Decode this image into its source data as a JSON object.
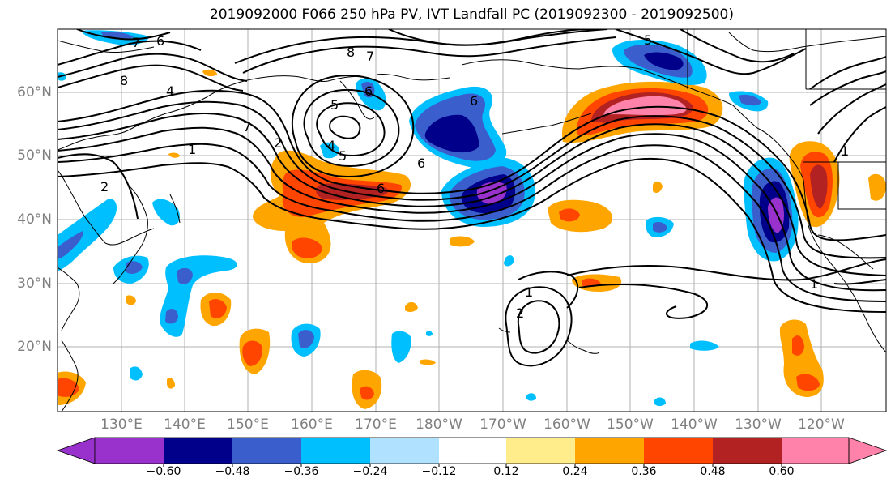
{
  "title": "2019092000 F066 250 hPa PV, IVT Landfall PC (2019092300 - 2019092500)",
  "lat_labels": [
    "60°N",
    "50°N",
    "40°N",
    "30°N",
    "20°N"
  ],
  "lon_labels": [
    "130°E",
    "140°E",
    "150°E",
    "160°E",
    "170°E",
    "180°W",
    "170°W",
    "160°W",
    "150°W",
    "140°W",
    "130°W",
    "120°W"
  ],
  "colorbar": {
    "colors": [
      "#9932cc",
      "#00008b",
      "#3a5fcd",
      "#00bfff",
      "#b0e2ff",
      "#ffffff",
      "#ffec8b",
      "#ffa500",
      "#ff4500",
      "#b22222",
      "#ff82ab"
    ],
    "tick_labels": [
      "−0.60",
      "−0.48",
      "−0.36",
      "−0.24",
      "−0.12",
      "0.12",
      "0.24",
      "0.36",
      "0.48",
      "0.60"
    ]
  },
  "contour_labels": [
    "6",
    "7",
    "8",
    "4",
    "7",
    "5",
    "7",
    "8",
    "6",
    "5",
    "4",
    "5",
    "6",
    "2",
    "2",
    "1",
    "1",
    "1",
    "6",
    "6",
    "1",
    "2"
  ]
}
